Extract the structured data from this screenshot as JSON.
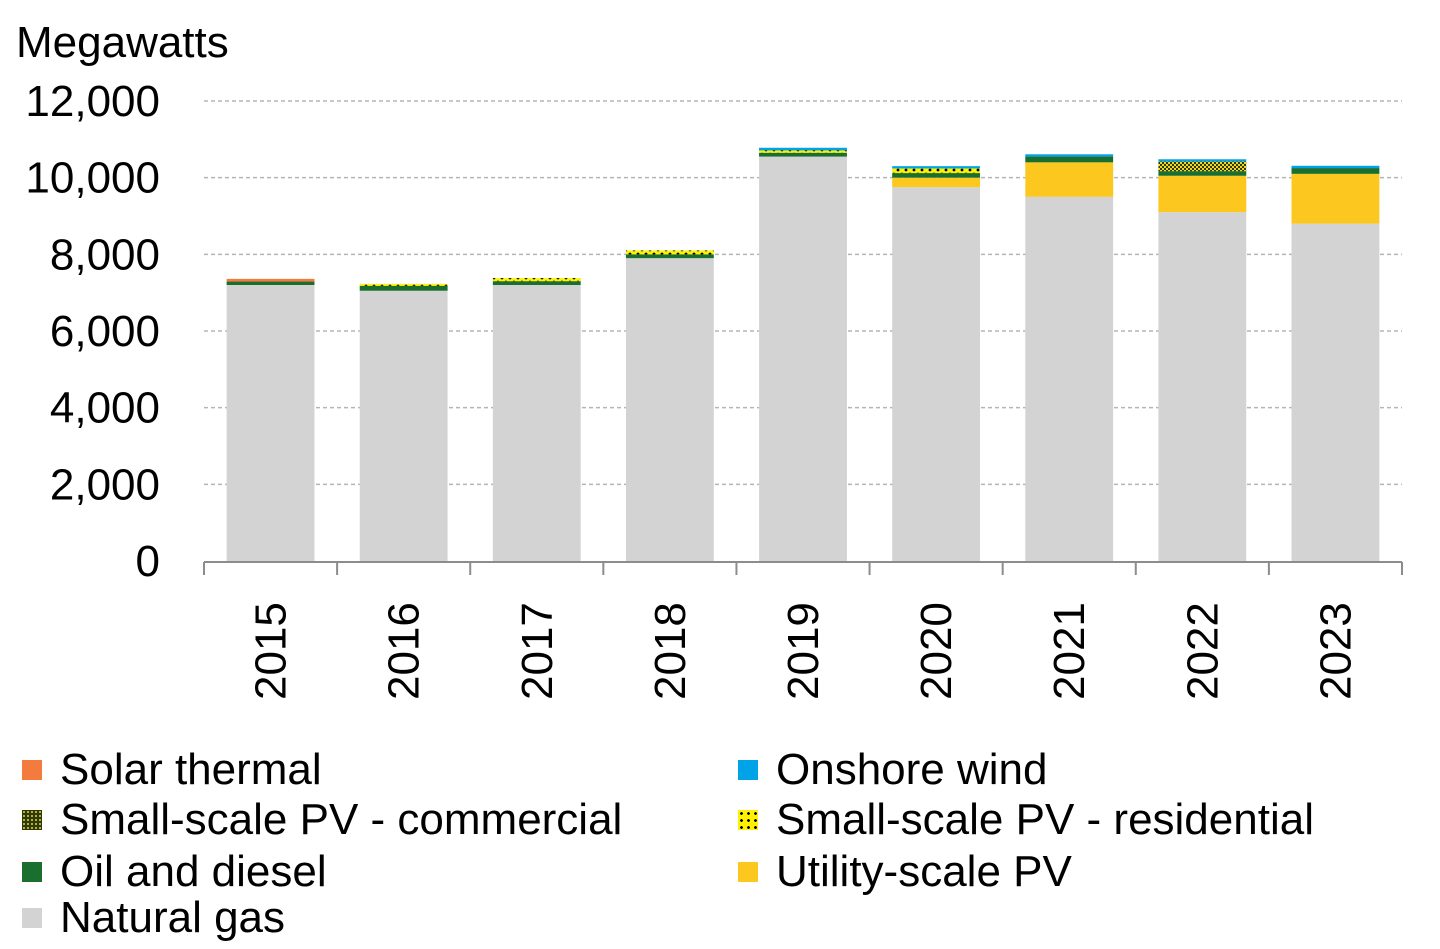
{
  "chart_data": {
    "type": "bar",
    "stacked": true,
    "ylabel": "Megawatts",
    "ylim": [
      0,
      12000
    ],
    "yticks": [
      0,
      2000,
      4000,
      6000,
      8000,
      10000,
      12000
    ],
    "ytick_labels": [
      "0",
      "2,000",
      "4,000",
      "6,000",
      "8,000",
      "10,000",
      "12,000"
    ],
    "grid": true,
    "legend_position": "bottom",
    "categories": [
      "2015",
      "2016",
      "2017",
      "2018",
      "2019",
      "2020",
      "2021",
      "2022",
      "2023"
    ],
    "series": [
      {
        "name": "Natural gas",
        "color": "#d3d3d3",
        "pattern": "solid",
        "values": [
          7200,
          7050,
          7200,
          7900,
          10550,
          9750,
          9500,
          9100,
          8800
        ]
      },
      {
        "name": "Utility-scale PV",
        "color": "#fcc820",
        "pattern": "solid",
        "values": [
          0,
          0,
          0,
          0,
          0,
          250,
          900,
          950,
          1300
        ]
      },
      {
        "name": "Oil and diesel",
        "color": "#1a6e2e",
        "pattern": "solid",
        "values": [
          90,
          130,
          100,
          100,
          100,
          120,
          150,
          120,
          150
        ]
      },
      {
        "name": "Small-scale PV - residential",
        "color": "#fff200",
        "pattern": "dots",
        "values": [
          0,
          50,
          80,
          100,
          60,
          120,
          0,
          0,
          0
        ]
      },
      {
        "name": "Small-scale PV - commercial",
        "color": "#2d3a10",
        "pattern": "checker",
        "values": [
          0,
          0,
          0,
          0,
          0,
          0,
          0,
          250,
          0
        ]
      },
      {
        "name": "Onshore wind",
        "color": "#00a2e8",
        "pattern": "solid",
        "values": [
          0,
          0,
          0,
          0,
          70,
          60,
          60,
          60,
          60
        ]
      },
      {
        "name": "Solar thermal",
        "color": "#f47b3e",
        "pattern": "solid",
        "values": [
          70,
          0,
          0,
          0,
          0,
          0,
          0,
          0,
          0
        ]
      }
    ]
  },
  "legend": [
    {
      "label": "Solar thermal",
      "swatch": "sw-solar"
    },
    {
      "label": "Onshore wind",
      "swatch": "sw-wind"
    },
    {
      "label": "Small-scale PV - commercial",
      "swatch": "sw-comm"
    },
    {
      "label": "Small-scale PV - residential",
      "swatch": "sw-res"
    },
    {
      "label": "Oil and diesel",
      "swatch": "sw-oil"
    },
    {
      "label": "Utility-scale PV",
      "swatch": "sw-util"
    },
    {
      "label": "Natural gas",
      "swatch": "sw-gas"
    }
  ]
}
